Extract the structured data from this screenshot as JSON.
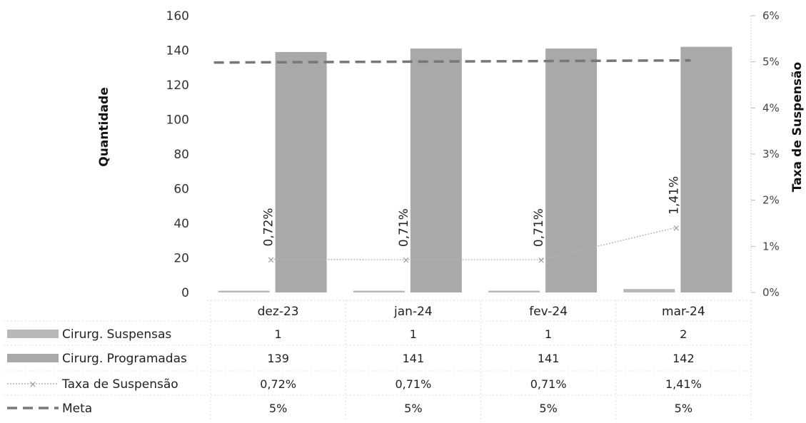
{
  "chart_data": {
    "type": "bar",
    "categories": [
      "dez-23",
      "jan-24",
      "fev-24",
      "mar-24"
    ],
    "series": [
      {
        "name": "Cirurg. Suspensas",
        "kind": "bar",
        "axis": "left",
        "values": [
          1,
          1,
          1,
          2
        ],
        "display": [
          "1",
          "1",
          "1",
          "2"
        ],
        "color": "#b8b8b8"
      },
      {
        "name": "Cirurg. Programadas",
        "kind": "bar",
        "axis": "left",
        "values": [
          139,
          141,
          141,
          142
        ],
        "display": [
          "139",
          "141",
          "141",
          "142"
        ],
        "color": "#a9a9a9"
      },
      {
        "name": "Taxa de Suspensão",
        "kind": "line",
        "axis": "right",
        "values": [
          0.72,
          0.71,
          0.71,
          1.41
        ],
        "display": [
          "0,72%",
          "0,71%",
          "0,71%",
          "1,41%"
        ],
        "color": "#b5b5b5"
      },
      {
        "name": "Meta",
        "kind": "dashed-line",
        "axis": "right",
        "values": [
          5,
          5,
          5,
          5
        ],
        "display": [
          "5%",
          "5%",
          "5%",
          "5%"
        ],
        "color": "#777777"
      }
    ],
    "ylabel": "Quantidade",
    "ylabel_right": "Taxa de Suspensão",
    "ylim": [
      0,
      160
    ],
    "ylim_right": [
      0,
      6
    ],
    "yticks": [
      "0",
      "20",
      "40",
      "60",
      "80",
      "100",
      "120",
      "140",
      "160"
    ],
    "yticks_right": [
      "0%",
      "1%",
      "2%",
      "3%",
      "4%",
      "5%",
      "6%"
    ],
    "legend": "data-table",
    "grid": false
  }
}
